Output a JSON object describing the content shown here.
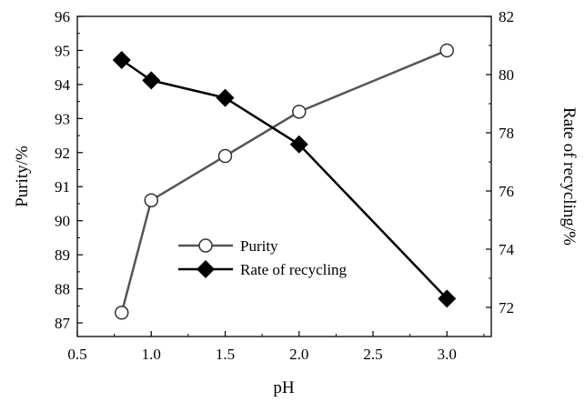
{
  "chart_data": {
    "type": "line",
    "xlabel": "pH",
    "ylabel_left": "Purity/%",
    "ylabel_right": "Rate of recycling/%",
    "xlim": [
      0.5,
      3.3
    ],
    "ylim_left": [
      86.6,
      96
    ],
    "ylim_right": [
      71,
      82
    ],
    "x_ticks": [
      "0.5",
      "1.0",
      "1.5",
      "2.0",
      "2.5",
      "3.0"
    ],
    "y_left_ticks": [
      "87",
      "88",
      "89",
      "90",
      "91",
      "92",
      "93",
      "94",
      "95",
      "96"
    ],
    "y_right_ticks": [
      "72",
      "74",
      "76",
      "78",
      "80",
      "82"
    ],
    "grid": false,
    "legend_position": "center-left",
    "series": [
      {
        "name": "Purity",
        "axis": "left",
        "marker": "open-circle",
        "color": "#555555",
        "x": [
          0.8,
          1.0,
          1.5,
          2.0,
          3.0
        ],
        "y": [
          87.3,
          90.6,
          91.9,
          93.2,
          95.0
        ]
      },
      {
        "name": "Rate of recycling",
        "axis": "right",
        "marker": "filled-diamond",
        "color": "#000000",
        "x": [
          0.8,
          1.0,
          1.5,
          2.0,
          3.0
        ],
        "y": [
          80.5,
          79.8,
          79.2,
          77.6,
          72.3
        ]
      }
    ]
  }
}
